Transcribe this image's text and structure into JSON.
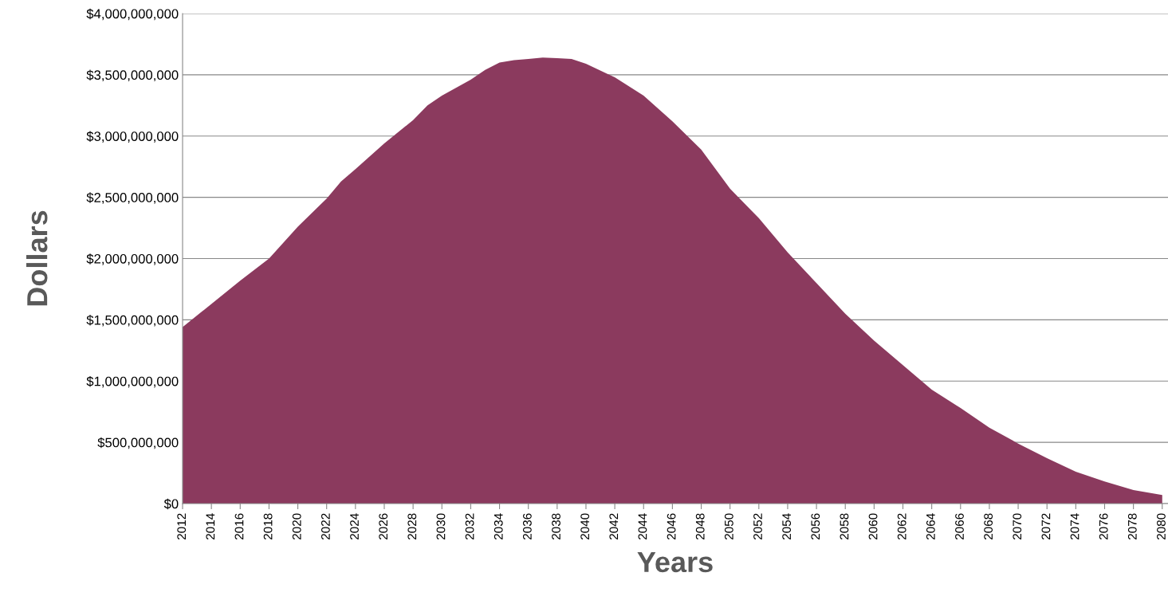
{
  "chart_data": {
    "type": "area",
    "xlabel": "Years",
    "ylabel": "Dollars",
    "x": [
      2012,
      2014,
      2016,
      2018,
      2020,
      2022,
      2023,
      2024,
      2026,
      2028,
      2029,
      2030,
      2032,
      2033,
      2034,
      2035,
      2036,
      2037,
      2038,
      2039,
      2040,
      2042,
      2044,
      2046,
      2048,
      2050,
      2052,
      2054,
      2056,
      2058,
      2060,
      2062,
      2064,
      2066,
      2068,
      2070,
      2072,
      2074,
      2076,
      2078,
      2080
    ],
    "series": [
      {
        "color": "#8b3a5e",
        "values": [
          1440000000,
          1630000000,
          1820000000,
          2000000000,
          2260000000,
          2490000000,
          2630000000,
          2730000000,
          2940000000,
          3130000000,
          3250000000,
          3330000000,
          3460000000,
          3540000000,
          3600000000,
          3620000000,
          3630000000,
          3640000000,
          3635000000,
          3630000000,
          3590000000,
          3480000000,
          3330000000,
          3120000000,
          2890000000,
          2570000000,
          2330000000,
          2050000000,
          1800000000,
          1550000000,
          1330000000,
          1130000000,
          930000000,
          780000000,
          620000000,
          490000000,
          370000000,
          260000000,
          180000000,
          110000000,
          70000000
        ]
      }
    ],
    "xlim": [
      2012,
      2080.4
    ],
    "xticks": [
      2012,
      2014,
      2016,
      2018,
      2020,
      2022,
      2024,
      2026,
      2028,
      2030,
      2032,
      2034,
      2036,
      2038,
      2040,
      2042,
      2044,
      2046,
      2048,
      2050,
      2052,
      2054,
      2056,
      2058,
      2060,
      2062,
      2064,
      2066,
      2068,
      2070,
      2072,
      2074,
      2076,
      2078,
      2080
    ],
    "ylim": [
      0,
      4000000000
    ],
    "yticks": [
      {
        "value": 0,
        "label": "$0"
      },
      {
        "value": 500000000,
        "label": "$500,000,000"
      },
      {
        "value": 1000000000,
        "label": "$1,000,000,000"
      },
      {
        "value": 1500000000,
        "label": "$1,500,000,000"
      },
      {
        "value": 2000000000,
        "label": "$2,000,000,000"
      },
      {
        "value": 2500000000,
        "label": "$2,500,000,000"
      },
      {
        "value": 3000000000,
        "label": "$3,000,000,000"
      },
      {
        "value": 3500000000,
        "label": "$3,500,000,000"
      },
      {
        "value": 4000000000,
        "label": "$4,000,000,000"
      }
    ],
    "grid": "y",
    "legend": false
  }
}
